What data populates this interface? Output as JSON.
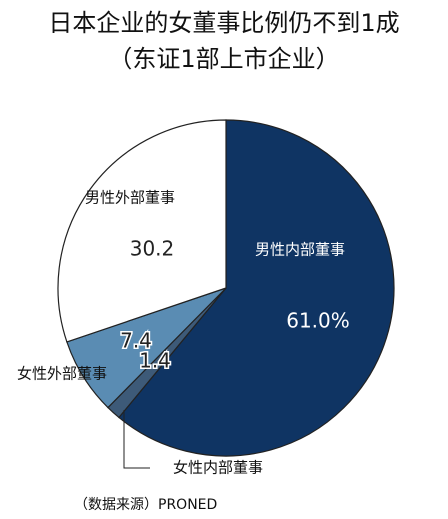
{
  "chart_data": {
    "type": "pie",
    "title": "日本企业的女董事比例仍不到1成",
    "subtitle": "（东证1部上市企业）",
    "source": "（数据来源）PRONED",
    "categories": [
      "男性内部董事",
      "女性内部董事",
      "女性外部董事",
      "男性外部董事"
    ],
    "values": [
      61.0,
      1.4,
      7.4,
      30.2
    ],
    "value_labels": [
      "61.0%",
      "1.4",
      "7.4",
      "30.2"
    ],
    "colors": [
      "#0f3463",
      "#3d5a78",
      "#5a8cb3",
      "#ffffff"
    ]
  }
}
